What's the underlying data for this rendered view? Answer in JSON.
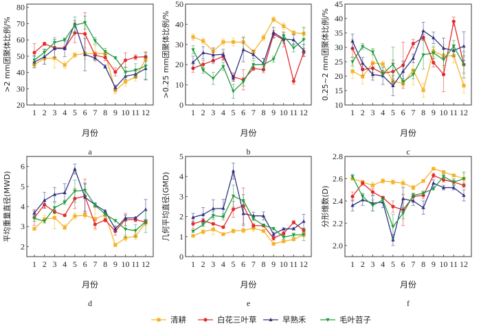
{
  "legend": [
    {
      "name": "清耕",
      "color": "#f5b32a",
      "marker": "square"
    },
    {
      "name": "白花三叶草",
      "color": "#e32b2b",
      "marker": "circle"
    },
    {
      "name": "早熟禾",
      "color": "#2e3280",
      "marker": "triangle-up"
    },
    {
      "name": "毛叶苕子",
      "color": "#1f9c3d",
      "marker": "triangle-down"
    }
  ],
  "chart_data": [
    {
      "type": "line",
      "panel": "a",
      "letter": "a",
      "xlabel": "月份",
      "ylabel": ">2 mm团聚体比例/%",
      "x": [
        1,
        2,
        3,
        4,
        5,
        6,
        7,
        8,
        9,
        10,
        11,
        12
      ],
      "xticks": [
        "1",
        "2",
        "3",
        "4",
        "5",
        "6",
        "7",
        "8",
        "9",
        "10",
        "11",
        "12"
      ],
      "ylim": [
        20,
        82
      ],
      "yticks": [
        20,
        30,
        40,
        50,
        60,
        70,
        80
      ],
      "ytick_labels": [
        "20",
        "30",
        "40",
        "50",
        "60",
        "70",
        "80"
      ],
      "series": [
        {
          "name": "清耕",
          "values": [
            44.8,
            48.6,
            48.8,
            44.6,
            50.7,
            51.7,
            51.7,
            51.5,
            28.9,
            34.3,
            37.2,
            48.2
          ],
          "err": [
            2,
            3.5,
            6,
            2,
            1.5,
            3.5,
            5,
            2,
            2,
            2.5,
            2.5,
            4
          ]
        },
        {
          "name": "白花三叶草",
          "values": [
            52.2,
            57.6,
            55.1,
            55.0,
            64.3,
            63.7,
            50.6,
            49.2,
            40.3,
            47.5,
            49.3,
            49.7
          ],
          "err": [
            5.5,
            1,
            1,
            1,
            6,
            13,
            1.5,
            2,
            2.5,
            4.5,
            1.5,
            3
          ]
        },
        {
          "name": "早熟禾",
          "values": [
            46.4,
            49.6,
            54.7,
            54.7,
            69.9,
            51.0,
            48.9,
            43.6,
            30.7,
            37.7,
            38.9,
            42.4
          ],
          "err": [
            3.5,
            4.5,
            5.5,
            5,
            2,
            10,
            1.5,
            1,
            1.5,
            2,
            2,
            7
          ]
        },
        {
          "name": "毛叶苕子",
          "values": [
            47.6,
            52.4,
            58.4,
            60.1,
            69.1,
            70.6,
            59.5,
            52.8,
            49.0,
            40.3,
            41.4,
            43.9
          ],
          "err": [
            3,
            2,
            3,
            1,
            5,
            4,
            2,
            2,
            0.5,
            3,
            4,
            8
          ]
        }
      ]
    },
    {
      "type": "line",
      "panel": "b",
      "letter": "b",
      "xlabel": "月份",
      "ylabel": ">0.25 mm团聚体比例/%",
      "x": [
        1,
        2,
        3,
        4,
        5,
        6,
        7,
        8,
        9,
        10,
        11,
        12
      ],
      "xticks": [
        "1",
        "2",
        "3",
        "4",
        "5",
        "6",
        "7",
        "8",
        "9",
        "10",
        "11",
        "12"
      ],
      "ylim": [
        0,
        50
      ],
      "yticks": [
        0,
        10,
        20,
        30,
        40,
        50
      ],
      "ytick_labels": [
        "0",
        "10",
        "20",
        "30",
        "40",
        "50"
      ],
      "series": [
        {
          "name": "清耕",
          "values": [
            33.7,
            31.7,
            26.6,
            31.2,
            31.2,
            31.1,
            26.4,
            33.4,
            42.4,
            39.1,
            35.8,
            35.4
          ],
          "err": [
            1.5,
            1.5,
            1.5,
            1.5,
            2,
            3,
            1,
            1.5,
            1.2,
            1.5,
            1,
            3
          ]
        },
        {
          "name": "白花三叶草",
          "values": [
            18.2,
            20.1,
            22.0,
            24.1,
            13.9,
            12.5,
            18.1,
            17.5,
            35.0,
            32.3,
            11.8,
            26.1
          ],
          "err": [
            2,
            2,
            1.5,
            2,
            2,
            5,
            1,
            1.5,
            2,
            3.5,
            1.5,
            2
          ]
        },
        {
          "name": "早熟禾",
          "values": [
            21.2,
            25.9,
            24.8,
            25.1,
            13.3,
            27.4,
            25.0,
            20.6,
            36.0,
            32.7,
            32.3,
            27.1
          ],
          "err": [
            3,
            3,
            3.5,
            2.5,
            1.5,
            6,
            2,
            2.5,
            2.5,
            2,
            2.5,
            3
          ]
        },
        {
          "name": "毛叶苕子",
          "values": [
            27.4,
            17.2,
            13.2,
            19.1,
            6.8,
            11.5,
            20.0,
            20.0,
            22.7,
            34.3,
            28.3,
            32.4
          ],
          "err": [
            2,
            1.5,
            3,
            2,
            3.5,
            2,
            2,
            3,
            1.5,
            2,
            2,
            6
          ]
        }
      ]
    },
    {
      "type": "line",
      "panel": "c",
      "letter": "c",
      "xlabel": "月份",
      "ylabel": "0.25~2 mm团聚体比例/%",
      "x": [
        1,
        2,
        3,
        4,
        5,
        6,
        7,
        8,
        9,
        10,
        11,
        12
      ],
      "xticks": [
        "1",
        "2",
        "3",
        "4",
        "5",
        "6",
        "7",
        "8",
        "9",
        "10",
        "11",
        "12"
      ],
      "ylim": [
        10,
        45
      ],
      "yticks": [
        10,
        15,
        20,
        25,
        30,
        35,
        40,
        45
      ],
      "ytick_labels": [
        "10",
        "15",
        "20",
        "25",
        "30",
        "35",
        "40",
        "45"
      ],
      "series": [
        {
          "name": "清耕",
          "values": [
            21.7,
            19.8,
            24.6,
            24.2,
            18.2,
            17.5,
            22.0,
            15.1,
            28.7,
            27.0,
            27.1,
            16.7
          ],
          "err": [
            2.5,
            2.5,
            5,
            1,
            1,
            1,
            5,
            2.5,
            2,
            4,
            2.5,
            2.5
          ]
        },
        {
          "name": "白花三叶草",
          "values": [
            29.6,
            22.3,
            22.8,
            21.0,
            21.6,
            23.8,
            31.3,
            33.4,
            24.7,
            20.6,
            39.0,
            24.0
          ],
          "err": [
            3,
            2,
            1.5,
            1,
            4,
            8,
            1.5,
            1,
            1.5,
            6,
            1.5,
            3
          ]
        },
        {
          "name": "早熟禾",
          "values": [
            32.1,
            24.5,
            20.6,
            20.1,
            16.7,
            21.7,
            26.2,
            35.7,
            33.3,
            29.7,
            28.9,
            30.4
          ],
          "err": [
            2.5,
            2,
            2,
            3,
            3.5,
            3.5,
            1.5,
            3,
            2,
            3.5,
            2,
            5
          ]
        },
        {
          "name": "毛叶苕子",
          "values": [
            25.0,
            30.3,
            28.4,
            20.8,
            24.1,
            18.1,
            20.6,
            27.4,
            28.1,
            25.7,
            30.4,
            24.0
          ],
          "err": [
            1.5,
            1,
            1,
            1,
            6,
            1,
            1.5,
            5,
            2,
            2,
            2,
            4.5
          ]
        }
      ]
    },
    {
      "type": "line",
      "panel": "d",
      "letter": "d",
      "xlabel": "月份",
      "ylabel": "平均重量直径(MWD)",
      "x": [
        1,
        2,
        3,
        4,
        5,
        6,
        7,
        8,
        9,
        10,
        11,
        12
      ],
      "xticks": [
        "1",
        "2",
        "3",
        "4",
        "5",
        "6",
        "7",
        "8",
        "9",
        "10",
        "11",
        "12"
      ],
      "ylim": [
        1.5,
        6.5
      ],
      "yticks": [
        2,
        3,
        4,
        5,
        6
      ],
      "ytick_labels": [
        "2",
        "3",
        "4",
        "5",
        "6"
      ],
      "series": [
        {
          "name": "清耕",
          "values": [
            2.89,
            3.37,
            3.44,
            2.96,
            3.52,
            3.57,
            3.38,
            3.59,
            2.08,
            2.43,
            2.52,
            3.19
          ],
          "err": [
            0.05,
            0.2,
            0.55,
            0.12,
            0.15,
            0.15,
            0.55,
            0.1,
            0.08,
            0.15,
            0.15,
            0.15
          ]
        },
        {
          "name": "白花三叶草",
          "values": [
            3.45,
            4.09,
            3.74,
            3.56,
            4.4,
            4.52,
            3.11,
            3.33,
            2.77,
            3.35,
            3.34,
            3.23
          ],
          "err": [
            0.4,
            0.15,
            0.1,
            0.05,
            0.5,
            0.85,
            0.2,
            0.1,
            0.2,
            0.3,
            0.1,
            0.1
          ]
        },
        {
          "name": "早熟禾",
          "values": [
            3.68,
            4.31,
            4.6,
            4.69,
            5.87,
            4.46,
            4.09,
            3.77,
            2.88,
            3.43,
            3.43,
            3.85
          ],
          "err": [
            0.1,
            0.4,
            0.35,
            0.45,
            0.25,
            0.7,
            0.1,
            0.05,
            0.15,
            0.15,
            0.05,
            0.5
          ]
        },
        {
          "name": "毛叶苕子",
          "values": [
            3.41,
            3.27,
            3.94,
            4.21,
            4.77,
            4.81,
            4.06,
            3.62,
            3.3,
            2.87,
            2.8,
            3.25
          ],
          "err": [
            0.15,
            0.08,
            0.25,
            0.1,
            0.55,
            0.3,
            0.1,
            0.1,
            0.05,
            0.4,
            0.3,
            0.55
          ]
        }
      ]
    },
    {
      "type": "line",
      "panel": "e",
      "letter": "e",
      "xlabel": "月份",
      "ylabel": "几何平均直径(GMD)",
      "x": [
        1,
        2,
        3,
        4,
        5,
        6,
        7,
        8,
        9,
        10,
        11,
        12
      ],
      "xticks": [
        "1",
        "2",
        "3",
        "4",
        "5",
        "6",
        "7",
        "8",
        "9",
        "10",
        "11",
        "12"
      ],
      "ylim": [
        0,
        5
      ],
      "yticks": [
        0,
        1,
        2,
        3,
        4,
        5
      ],
      "ytick_labels": [
        "0",
        "1",
        "2",
        "3",
        "4",
        "5"
      ],
      "series": [
        {
          "name": "清耕",
          "values": [
            1.04,
            1.24,
            1.36,
            1.12,
            1.28,
            1.31,
            1.42,
            1.28,
            0.64,
            0.76,
            0.86,
            1.09
          ],
          "err": [
            0.05,
            0.1,
            0.25,
            0.05,
            0.1,
            0.12,
            0.15,
            0.05,
            0.03,
            0.05,
            0.05,
            0.1
          ]
        },
        {
          "name": "白花三叶草",
          "values": [
            1.64,
            1.79,
            1.64,
            1.47,
            2.36,
            2.53,
            1.55,
            1.55,
            0.92,
            1.16,
            1.71,
            1.31
          ],
          "err": [
            0.25,
            0.1,
            0.05,
            0.05,
            0.4,
            0.9,
            0.1,
            0.05,
            0.1,
            0.1,
            0.08,
            0.1
          ]
        },
        {
          "name": "早熟禾",
          "values": [
            1.96,
            2.1,
            2.39,
            2.41,
            4.27,
            2.15,
            2.04,
            2.03,
            1.12,
            1.38,
            1.39,
            1.76
          ],
          "err": [
            0.2,
            0.35,
            0.45,
            0.45,
            0.4,
            0.6,
            0.18,
            0.2,
            0.1,
            0.05,
            0.05,
            0.35
          ]
        },
        {
          "name": "毛叶苕子",
          "values": [
            1.27,
            1.6,
            2.05,
            1.99,
            3.02,
            2.79,
            1.89,
            1.57,
            1.4,
            0.97,
            1.08,
            1.1
          ],
          "err": [
            0.05,
            0.1,
            0.2,
            0.15,
            0.55,
            0.3,
            0.1,
            0.05,
            0.05,
            0.1,
            0.1,
            0.3
          ]
        }
      ]
    },
    {
      "type": "line",
      "panel": "f",
      "letter": "f",
      "xlabel": "月份",
      "ylabel": "分形维数(D)",
      "x": [
        1,
        2,
        3,
        4,
        5,
        6,
        7,
        8,
        9,
        10,
        11,
        12
      ],
      "xticks": [
        "1",
        "2",
        "3",
        "4",
        "5",
        "6",
        "7",
        "8",
        "9",
        "10",
        "11",
        "12"
      ],
      "ylim": [
        1.9,
        2.8
      ],
      "yticks": [
        2.0,
        2.2,
        2.4,
        2.6,
        2.8
      ],
      "ytick_labels": [
        "2.0",
        "2.2",
        "2.4",
        "2.6",
        "2.8"
      ],
      "series": [
        {
          "name": "清耕",
          "values": [
            2.6,
            2.57,
            2.54,
            2.58,
            2.57,
            2.56,
            2.52,
            2.58,
            2.69,
            2.66,
            2.63,
            2.6
          ],
          "err": [
            0.01,
            0.01,
            0.03,
            0.02,
            0.02,
            0.03,
            0.02,
            0.01,
            0.01,
            0.01,
            0.01,
            0.05
          ]
        },
        {
          "name": "白花三叶草",
          "values": [
            2.44,
            2.56,
            2.48,
            2.43,
            2.35,
            2.32,
            2.44,
            2.45,
            2.63,
            2.59,
            2.57,
            2.54
          ],
          "err": [
            0.04,
            0.02,
            0.03,
            0.01,
            0.05,
            0.14,
            0.03,
            0.03,
            0.02,
            0.02,
            0.02,
            0.02
          ]
        },
        {
          "name": "早熟禾",
          "values": [
            2.36,
            2.41,
            2.38,
            2.39,
            2.05,
            2.42,
            2.4,
            2.34,
            2.56,
            2.52,
            2.52,
            2.45
          ],
          "err": [
            0.05,
            0.05,
            0.07,
            0.05,
            0.05,
            0.1,
            0.04,
            0.06,
            0.03,
            0.02,
            0.02,
            0.05
          ]
        },
        {
          "name": "毛叶苕子",
          "values": [
            2.62,
            2.44,
            2.36,
            2.41,
            2.17,
            2.29,
            2.45,
            2.47,
            2.51,
            2.62,
            2.57,
            2.6
          ],
          "err": [
            0.02,
            0.03,
            0.05,
            0.03,
            0.11,
            0.05,
            0.02,
            0.02,
            0.01,
            0.02,
            0.03,
            0.06
          ]
        }
      ]
    }
  ]
}
